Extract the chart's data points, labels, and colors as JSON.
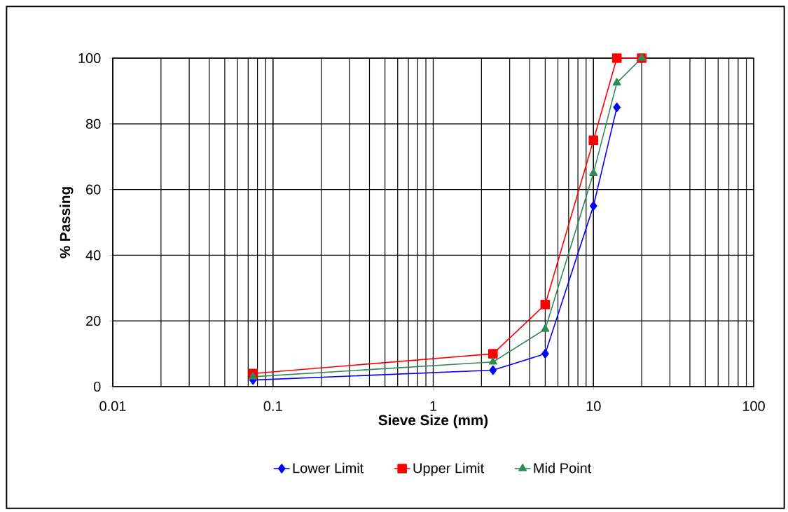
{
  "chart_data": {
    "type": "line",
    "xlabel": "Sieve Size (mm)",
    "ylabel": "% Passing",
    "x": [
      0.075,
      2.36,
      5,
      10,
      14,
      20
    ],
    "series": [
      {
        "name": "Lower Limit",
        "color": "#0000ff",
        "marker": "diamond",
        "values": [
          2,
          5,
          10,
          55,
          85,
          null
        ]
      },
      {
        "name": "Upper Limit",
        "color": "#ff0000",
        "marker": "square",
        "values": [
          4,
          10,
          25,
          75,
          100,
          100
        ]
      },
      {
        "name": "Mid Point",
        "color": "#2e8b57",
        "marker": "triangle",
        "values": [
          3,
          7.5,
          17.5,
          65,
          92.5,
          100
        ]
      }
    ],
    "log": "x",
    "xlim": [
      0.01,
      100
    ],
    "xticks": [
      0.01,
      0.1,
      1,
      10,
      100
    ],
    "ylim": [
      0,
      100
    ],
    "yticks": [
      0,
      20,
      40,
      60,
      80,
      100
    ],
    "grid": true,
    "legend": "bottom",
    "line_style": "solid"
  }
}
